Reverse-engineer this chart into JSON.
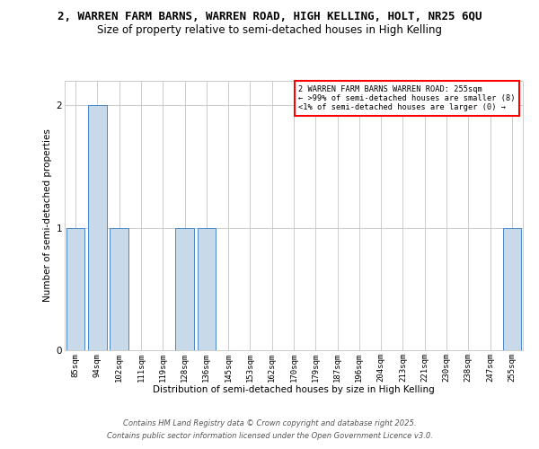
{
  "title": "2, WARREN FARM BARNS, WARREN ROAD, HIGH KELLING, HOLT, NR25 6QU",
  "subtitle": "Size of property relative to semi-detached houses in High Kelling",
  "xlabel": "Distribution of semi-detached houses by size in High Kelling",
  "ylabel": "Number of semi-detached properties",
  "categories": [
    "85sqm",
    "94sqm",
    "102sqm",
    "111sqm",
    "119sqm",
    "128sqm",
    "136sqm",
    "145sqm",
    "153sqm",
    "162sqm",
    "170sqm",
    "179sqm",
    "187sqm",
    "196sqm",
    "204sqm",
    "213sqm",
    "221sqm",
    "230sqm",
    "238sqm",
    "247sqm",
    "255sqm"
  ],
  "values": [
    1,
    2,
    1,
    0,
    0,
    1,
    1,
    0,
    0,
    0,
    0,
    0,
    0,
    0,
    0,
    0,
    0,
    0,
    0,
    0,
    1
  ],
  "bar_color": "#c8daea",
  "bar_edge_color": "#4a86c8",
  "ylim": [
    0,
    2.2
  ],
  "yticks": [
    0,
    1,
    2
  ],
  "annotation_title": "2 WARREN FARM BARNS WARREN ROAD: 255sqm",
  "annotation_line1": "← >99% of semi-detached houses are smaller (8)",
  "annotation_line2": "<1% of semi-detached houses are larger (0) →",
  "annotation_box_color": "#ffffff",
  "annotation_border_color": "#ff0000",
  "footnote1": "Contains HM Land Registry data © Crown copyright and database right 2025.",
  "footnote2": "Contains public sector information licensed under the Open Government Licence v3.0.",
  "background_color": "#ffffff",
  "grid_color": "#cccccc",
  "title_fontsize": 9,
  "subtitle_fontsize": 8.5,
  "axis_label_fontsize": 7.5,
  "tick_fontsize": 6.5,
  "footnote_fontsize": 6
}
